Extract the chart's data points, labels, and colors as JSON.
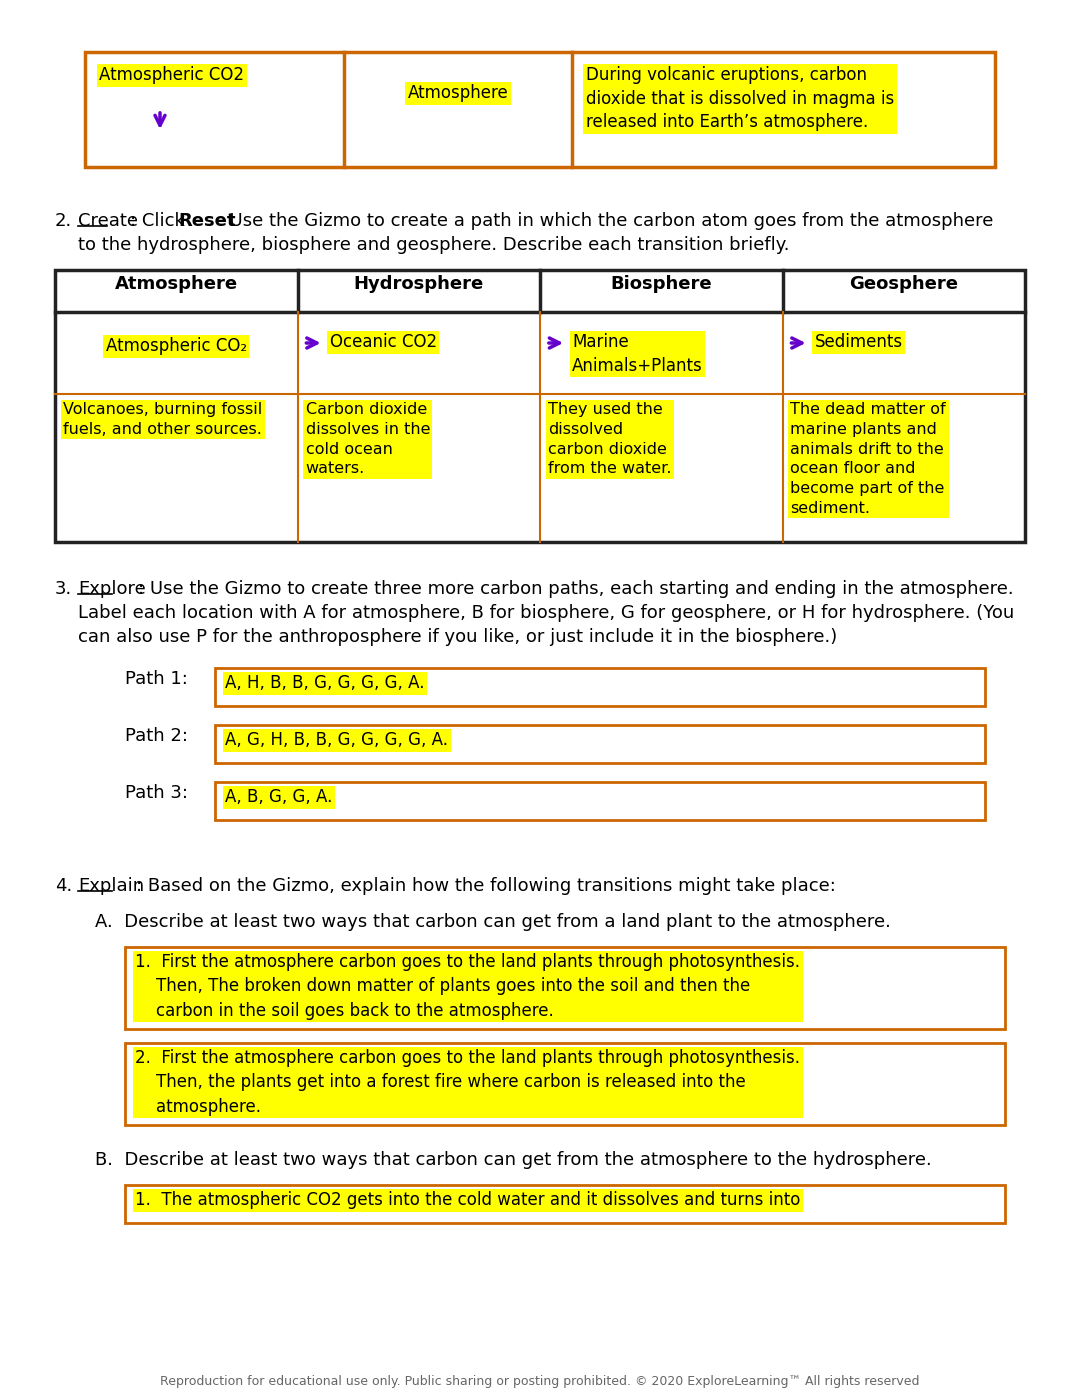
{
  "bg_color": "#ffffff",
  "highlight_yellow": "#ffff00",
  "border_orange": "#cc6600",
  "arrow_purple": "#6600cc",
  "section2_headers": [
    "Atmosphere",
    "Hydrosphere",
    "Biosphere",
    "Geosphere"
  ],
  "section2_row1": [
    "Atmospheric CO₂",
    "Oceanic CO2",
    "Marine\nAnimals+Plants",
    "Sediments"
  ],
  "section2_row2": [
    "Volcanoes, burning fossil\nfuels, and other sources.",
    "Carbon dioxide\ndissolves in the\ncold ocean\nwaters.",
    "They used the\ndissolved\ncarbon dioxide\nfrom the water.",
    "The dead matter of\nmarine plants and\nanimals drift to the\nocean floor and\nbecome part of the\nsediment."
  ],
  "paths": [
    "A, H, B, B, G, G, G, G, A.",
    "A, G, H, B, B, G, G, G, G, A.",
    "A, B, G, G, A."
  ],
  "section4a_answers": [
    "1.  First the atmosphere carbon goes to the land plants through photosynthesis.\n    Then, The broken down matter of plants goes into the soil and then the\n    carbon in the soil goes back to the atmosphere.",
    "2.  First the atmosphere carbon goes to the land plants through photosynthesis.\n    Then, the plants get into a forest fire where carbon is released into the\n    atmosphere."
  ],
  "section4b_answers": [
    "1.  The atmospheric CO2 gets into the cold water and it dissolves and turns into"
  ],
  "footer": "Reproduction for educational use only. Public sharing or posting prohibited. © 2020 ExploreLearning™ All rights reserved"
}
